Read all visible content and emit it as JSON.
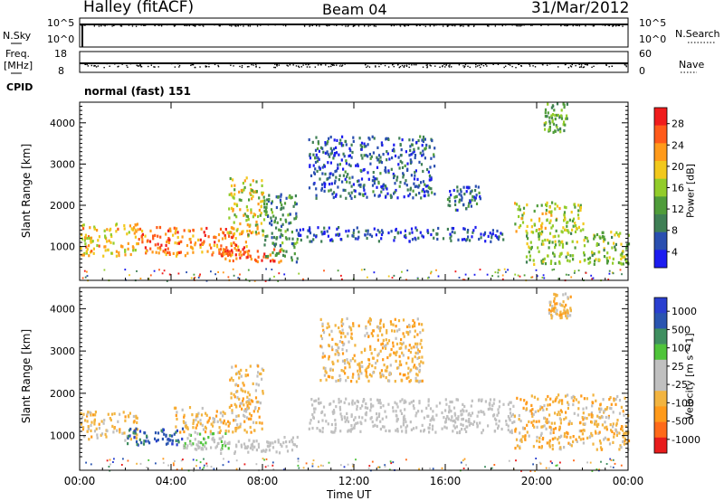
{
  "header": {
    "station": "Halley (fitACF)",
    "beam": "Beam 04",
    "date": "31/Mar/2012"
  },
  "sky_panel": {
    "left_label": "N.Sky",
    "right_label": "N.Search",
    "left_ticks": [
      "10^5",
      "10^0"
    ],
    "right_ticks": [
      "10^5",
      "10^0"
    ]
  },
  "freq_panel": {
    "left_label_1": "Freq.",
    "left_label_2": "[MHz]",
    "right_label": "Nave",
    "left_ticks": [
      "18",
      "8"
    ],
    "right_ticks": [
      "60",
      "0"
    ]
  },
  "cpid": {
    "label": "CPID",
    "value": "normal (fast) 151"
  },
  "colors": {
    "power": [
      "#1c1cf0",
      "#2a4fb0",
      "#3f7f55",
      "#4f9c3a",
      "#92cc2a",
      "#f2c81c",
      "#ff9a1a",
      "#ff5a1a",
      "#f01c1c"
    ],
    "velocity": [
      "#e81c1c",
      "#ff6a1a",
      "#ff9a1a",
      "#f2b440",
      "#c0c0c0",
      "#c0c0c0",
      "#4fc43a",
      "#3f8f60",
      "#2a55b0",
      "#2a3fd0"
    ]
  },
  "chart_data": [
    {
      "type": "heatmap",
      "title": "Power",
      "ylabel": "Slant Range [km]",
      "xlabel": "",
      "xlim": [
        "00:00",
        "24:00"
      ],
      "ylim": [
        180,
        4500
      ],
      "y_ticks": [
        1000,
        2000,
        3000,
        4000
      ],
      "x_ticks": [
        "00:00",
        "04:00",
        "08:00",
        "12:00",
        "16:00",
        "20:00",
        "00:00"
      ],
      "colorbar": {
        "label": "Power [dB]",
        "ticks": [
          "28",
          "24",
          "20",
          "16",
          "12",
          "8",
          "4"
        ],
        "range": [
          0,
          30
        ]
      },
      "regions": [
        {
          "t0": 0.0,
          "t1": 2.5,
          "r0": 800,
          "r1": 1600,
          "val": 19
        },
        {
          "t0": 2.5,
          "t1": 7.5,
          "r0": 800,
          "r1": 1500,
          "val": 23
        },
        {
          "t0": 6.0,
          "t1": 8.8,
          "r0": 650,
          "r1": 1000,
          "val": 25
        },
        {
          "t0": 6.5,
          "t1": 8.0,
          "r0": 1300,
          "r1": 2700,
          "val": 17
        },
        {
          "t0": 8.0,
          "t1": 9.5,
          "r0": 650,
          "r1": 2300,
          "val": 9
        },
        {
          "t0": 9.5,
          "t1": 18.5,
          "r0": 1150,
          "r1": 1500,
          "val": 5
        },
        {
          "t0": 10.0,
          "t1": 15.5,
          "r0": 2200,
          "r1": 3700,
          "val": 6
        },
        {
          "t0": 16.0,
          "t1": 17.5,
          "r0": 1900,
          "r1": 2500,
          "val": 7
        },
        {
          "t0": 19.0,
          "t1": 22.0,
          "r0": 1400,
          "r1": 2100,
          "val": 16
        },
        {
          "t0": 19.5,
          "t1": 24.0,
          "r0": 600,
          "r1": 1400,
          "val": 14
        },
        {
          "t0": 20.3,
          "t1": 21.3,
          "r0": 3800,
          "r1": 4500,
          "val": 12
        }
      ]
    },
    {
      "type": "heatmap",
      "title": "Velocity",
      "ylabel": "Slant Range [km]",
      "xlabel": "Time UT",
      "xlim": [
        "00:00",
        "24:00"
      ],
      "ylim": [
        180,
        4500
      ],
      "y_ticks": [
        1000,
        2000,
        3000,
        4000
      ],
      "x_ticks": [
        "00:00",
        "04:00",
        "08:00",
        "12:00",
        "16:00",
        "20:00",
        "00:00"
      ],
      "colorbar": {
        "label": "Velocity [m s^-1]",
        "ticks": [
          "1000",
          "500",
          "100",
          "25",
          "-25",
          "-100",
          "-500",
          "-1000"
        ],
        "range": [
          -1000,
          1000
        ]
      },
      "regions": [
        {
          "t0": 0.0,
          "t1": 2.5,
          "r0": 900,
          "r1": 1600,
          "val": -250
        },
        {
          "t0": 2.0,
          "t1": 4.5,
          "r0": 800,
          "r1": 1200,
          "val": 700
        },
        {
          "t0": 4.5,
          "t1": 6.5,
          "r0": 700,
          "r1": 1100,
          "val": 150
        },
        {
          "t0": 4.0,
          "t1": 8.0,
          "r0": 1100,
          "r1": 1700,
          "val": -300
        },
        {
          "t0": 6.5,
          "t1": 8.0,
          "r0": 1600,
          "r1": 2700,
          "val": -300
        },
        {
          "t0": 6.0,
          "t1": 9.5,
          "r0": 600,
          "r1": 1000,
          "val": 0
        },
        {
          "t0": 10.0,
          "t1": 19.0,
          "r0": 1100,
          "r1": 1900,
          "val": 0
        },
        {
          "t0": 10.5,
          "t1": 15.0,
          "r0": 2300,
          "r1": 3800,
          "val": -300
        },
        {
          "t0": 19.0,
          "t1": 24.0,
          "r0": 700,
          "r1": 2000,
          "val": -300
        },
        {
          "t0": 20.5,
          "t1": 21.5,
          "r0": 3800,
          "r1": 4400,
          "val": -300
        }
      ]
    }
  ]
}
